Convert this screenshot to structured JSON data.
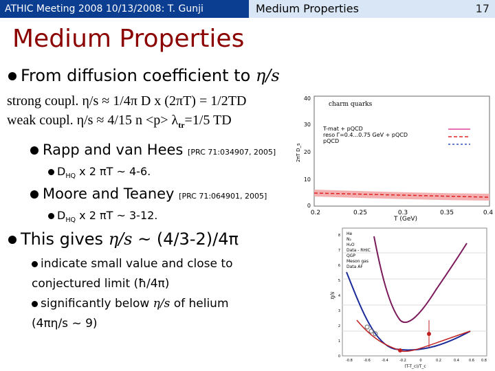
{
  "header": {
    "left_text": "ATHIC Meeting 2008 10/13/2008: T. Gunji",
    "right_text": "Medium Properties",
    "page_number": "17"
  },
  "slide": {
    "title": "Medium Properties",
    "line1": {
      "text": "From diffusion coefficient to ",
      "math": "η/s"
    },
    "line2": "strong coupl. η/s ≈ 1/4π D x (2πT) = 1/2TD",
    "line3": {
      "text": "weak coupl.  η/s ≈ 4/15 n <p> λ",
      "sub": "tr",
      "tail": "=1/5 TD"
    },
    "rapp": {
      "text": "Rapp and van Hees ",
      "ref": "[PRC 71:034907, 2005]"
    },
    "rapp_sub": {
      "pre": "D",
      "sub": "HQ",
      "post": " x 2 πT ~ 4-6."
    },
    "moore": {
      "text": "Moore and Teaney ",
      "ref": "[PRC 71:064901, 2005]"
    },
    "moore_sub": {
      "pre": "D",
      "sub": "HQ",
      "post": " x 2 πT ~ 3-12."
    },
    "gives": {
      "pre": "This gives ",
      "math": "η/s",
      "post": " ~ (4/3-2)/4π"
    },
    "para1": "indicate small value and close to conjectured limit (ħ/4π)",
    "para2_pre": "significantly below ",
    "para2_math": "η/s",
    "para2_post": " of helium (4πη/s ~ 9)"
  },
  "figure1": {
    "legend_title": "charm quarks",
    "legend": [
      "T-mat + pQCD",
      "reso Γ=0.4...0.75 GeV + pQCD",
      "pQCD"
    ],
    "xlabel": "T (GeV)",
    "ylabel": "2πT D_s",
    "xticks": [
      "0.2",
      "0.25",
      "0.3",
      "0.35",
      "0.4"
    ],
    "yticks": [
      "0",
      "10",
      "20",
      "30",
      "40"
    ],
    "colors": {
      "tmat": "#e0409a",
      "reso": "#e02020",
      "pqcd": "#3050c0",
      "band": "#f4b0b0"
    }
  },
  "figure2": {
    "ylabel": "η/s",
    "xlabel": "(T-T_c)/T_c",
    "legend": [
      "He",
      "N₂",
      "H₂O",
      "Data - RHIC",
      "QGP",
      "Meson gas",
      "Data AF"
    ],
    "xticks": [
      "-0.8",
      "-0.6",
      "-0.4",
      "-0.2",
      "0",
      "0.2",
      "0.4",
      "0.6",
      "0.8"
    ],
    "yticks": [
      "0",
      "1",
      "2",
      "3",
      "4",
      "5",
      "6",
      "7",
      "8"
    ]
  }
}
